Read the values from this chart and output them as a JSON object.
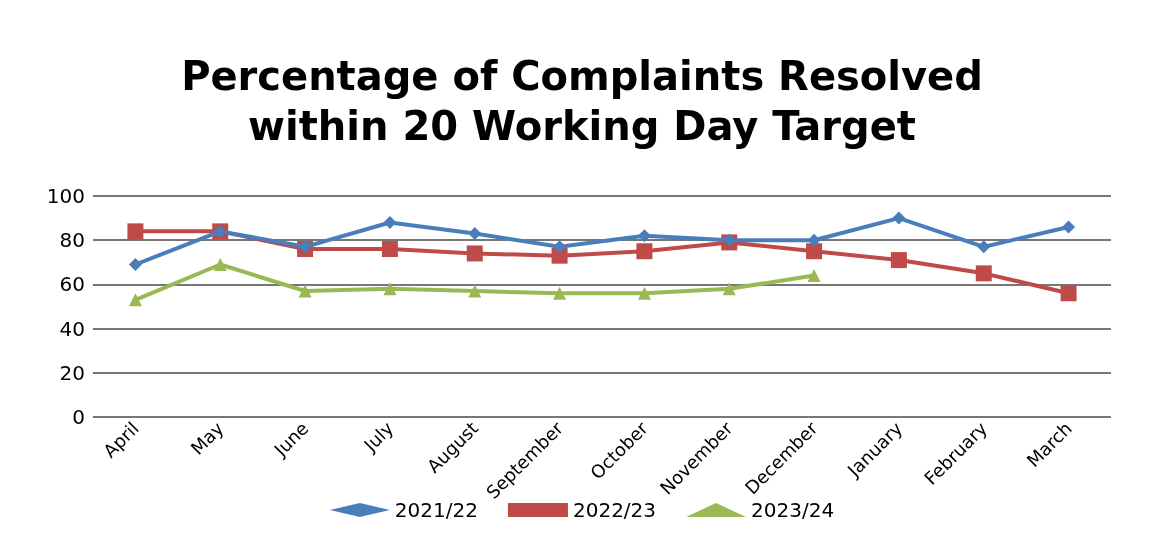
{
  "chart_data": {
    "type": "line",
    "title": "Percentage of Complaints Resolved\nwithin 20 Working Day Target",
    "categories": [
      "April",
      "May",
      "June",
      "July",
      "August",
      "September",
      "October",
      "November",
      "December",
      "January",
      "February",
      "March"
    ],
    "series": [
      {
        "name": "2021/22",
        "color": "#4a7ebb",
        "marker": "diamond",
        "values": [
          69,
          84,
          77,
          88,
          83,
          77,
          82,
          80,
          80,
          90,
          77,
          86
        ]
      },
      {
        "name": "2022/23",
        "color": "#be4b48",
        "marker": "square",
        "values": [
          84,
          84,
          76,
          76,
          74,
          73,
          75,
          79,
          75,
          71,
          65,
          56
        ]
      },
      {
        "name": "2023/24",
        "color": "#98b954",
        "marker": "triangle",
        "values": [
          53,
          69,
          57,
          58,
          57,
          56,
          56,
          58,
          64,
          null,
          null,
          null
        ]
      }
    ],
    "ylim": [
      0,
      100
    ],
    "yticks": [
      0,
      20,
      40,
      60,
      80,
      100
    ],
    "grid": "y",
    "legend": "bottom"
  }
}
